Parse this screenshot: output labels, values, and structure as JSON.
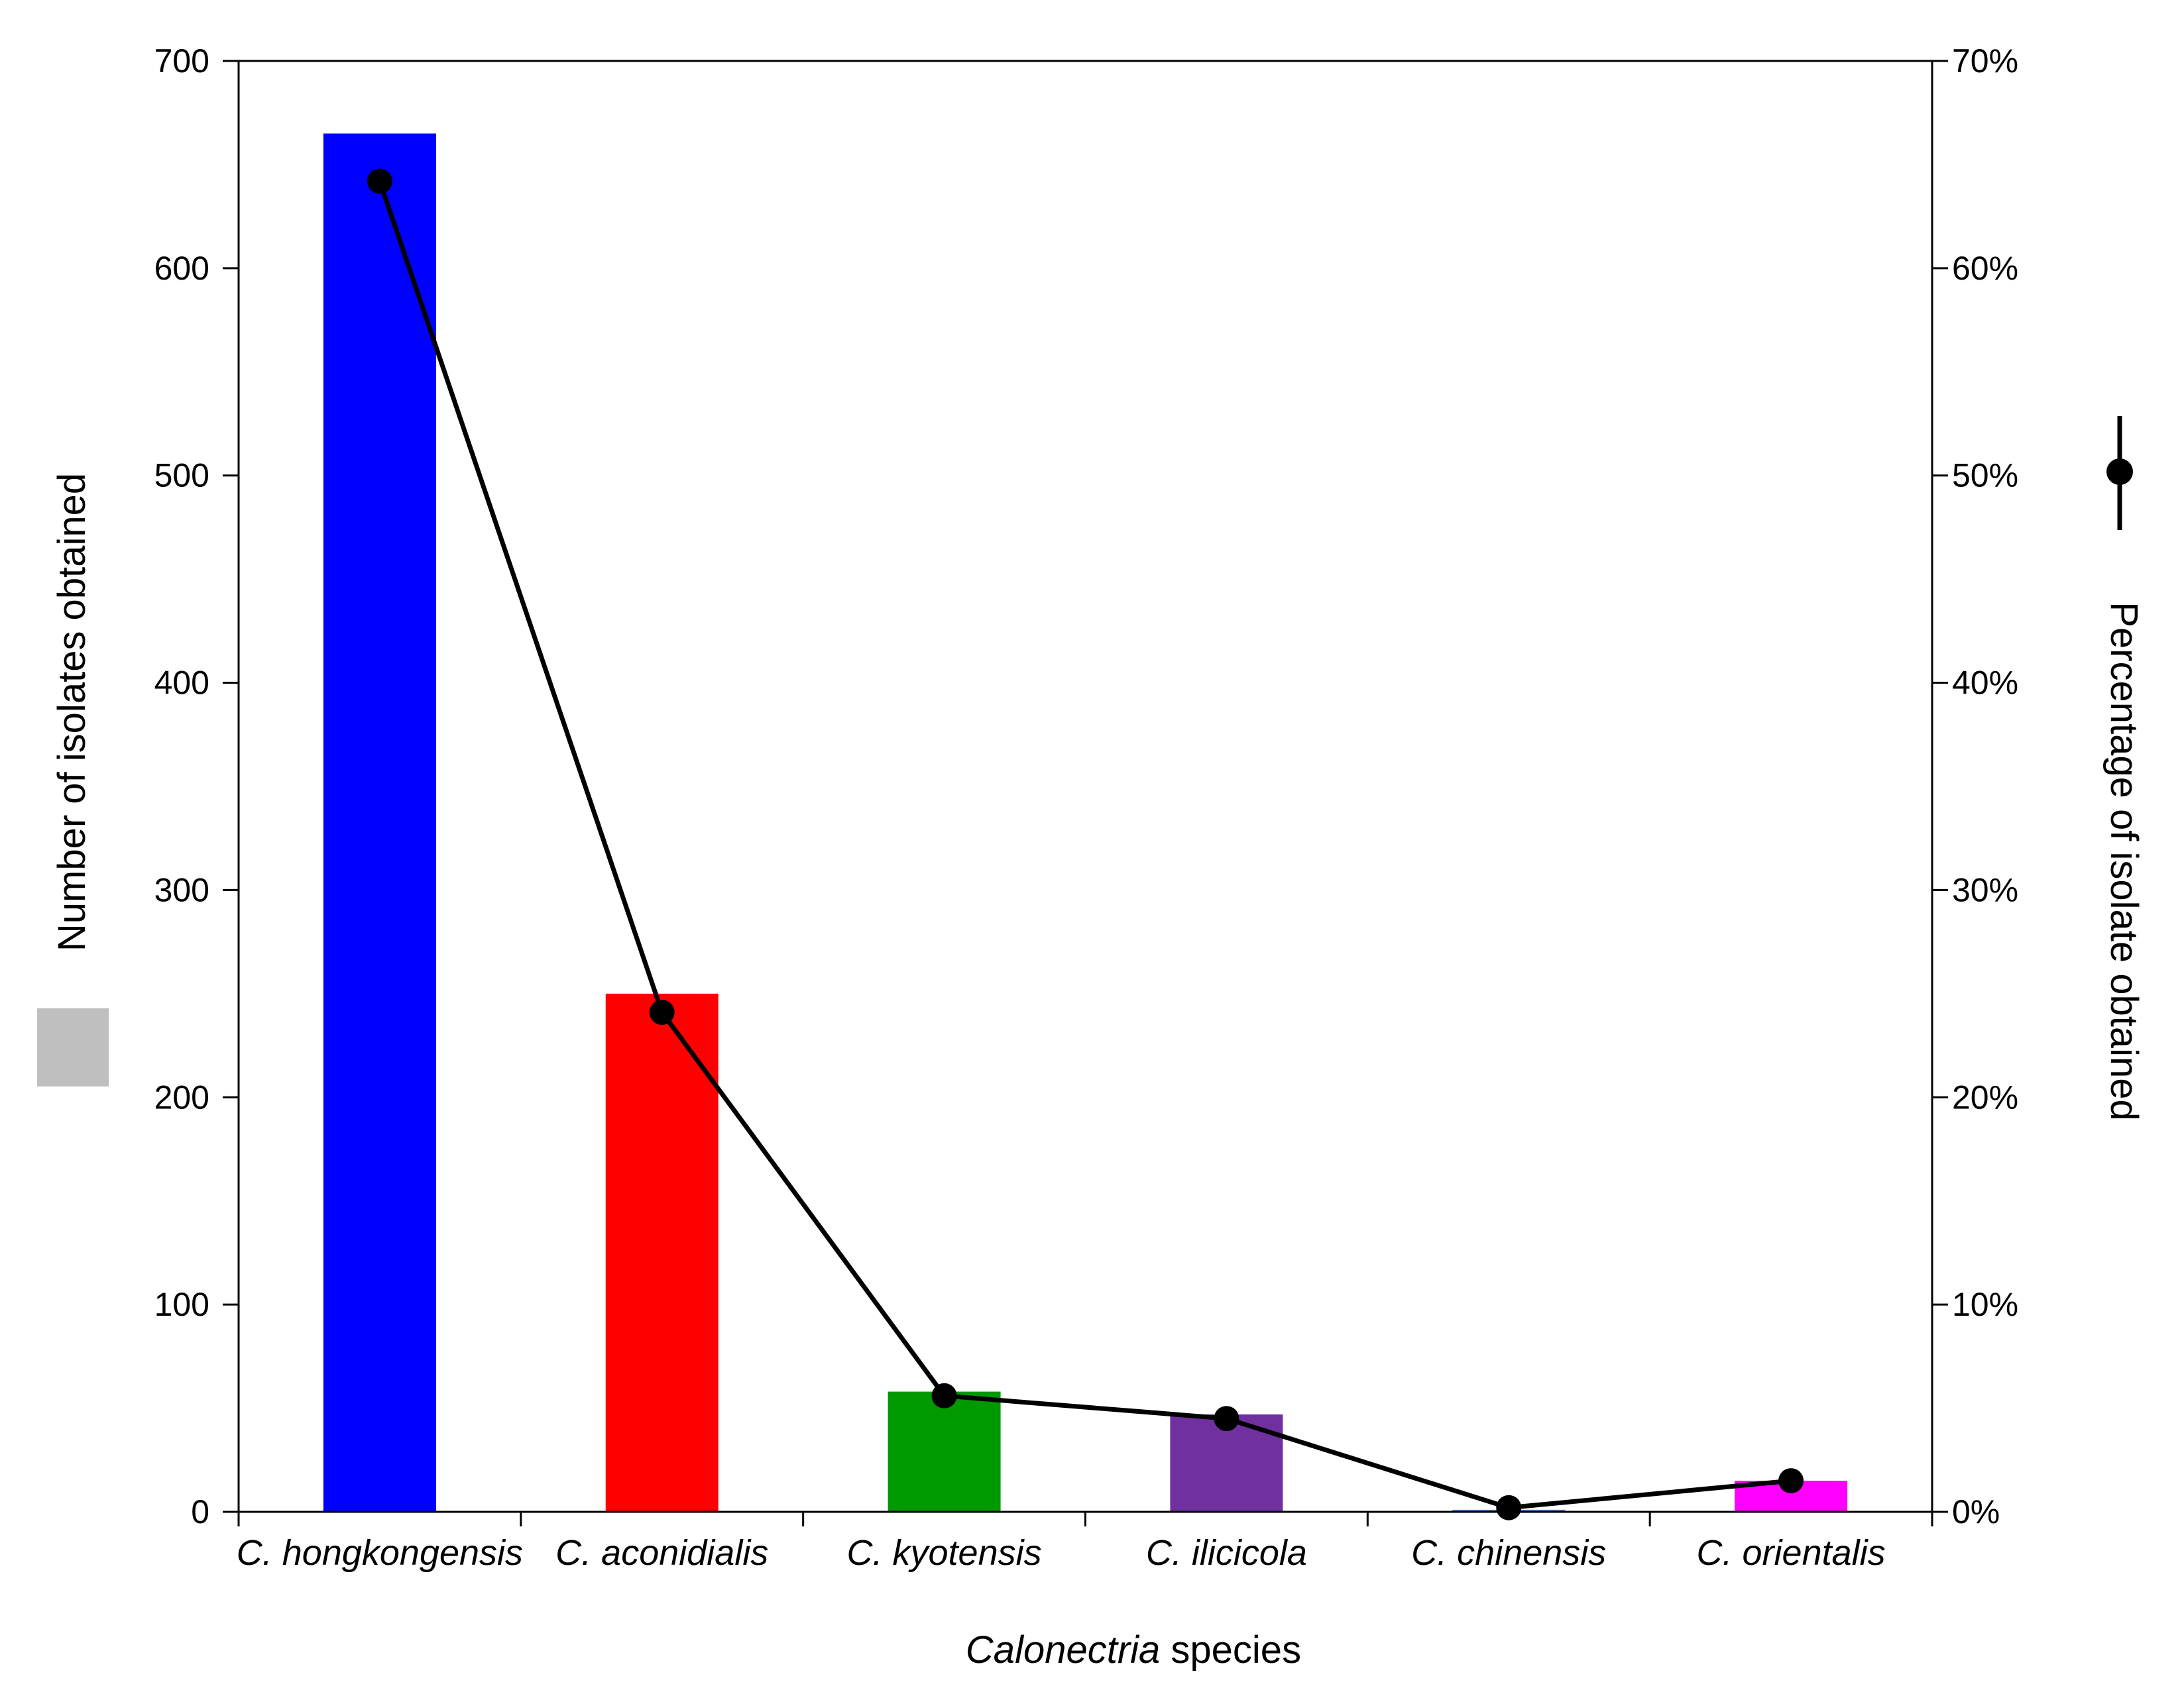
{
  "chart_data": {
    "type": "bar",
    "categories": [
      "C. hongkongensis",
      "C. aconidialis",
      "C. kyotensis",
      "C. ilicicola",
      "C. chinensis",
      "C. orientalis"
    ],
    "series": [
      {
        "type": "bar",
        "axis": "left",
        "values": [
          665,
          250,
          58,
          47,
          1,
          15
        ],
        "colors": [
          "#0000FF",
          "#FF0000",
          "#009900",
          "#7030A0",
          "#4F81BD",
          "#FF00FF"
        ]
      },
      {
        "type": "line",
        "axis": "right",
        "values": [
          64.2,
          24.1,
          5.6,
          4.5,
          0.2,
          1.5
        ],
        "color": "#000000"
      }
    ],
    "xlabel_italic": "Calonectria",
    "xlabel_rest": " species",
    "ylabel": "Number of isolates obtained",
    "y2label": "Percentage of isolate obtained",
    "ylim": [
      0,
      700
    ],
    "y2lim": [
      0,
      70
    ],
    "yticks": [
      "0",
      "100",
      "200",
      "300",
      "400",
      "500",
      "600",
      "700"
    ],
    "y2ticks": [
      "0%",
      "10%",
      "20%",
      "30%",
      "40%",
      "50%",
      "60%",
      "70%"
    ],
    "grid": false,
    "legend": "axis-title symbols (grey box left, line-marker right)",
    "legend_bar_color": "#BFBFBF"
  }
}
